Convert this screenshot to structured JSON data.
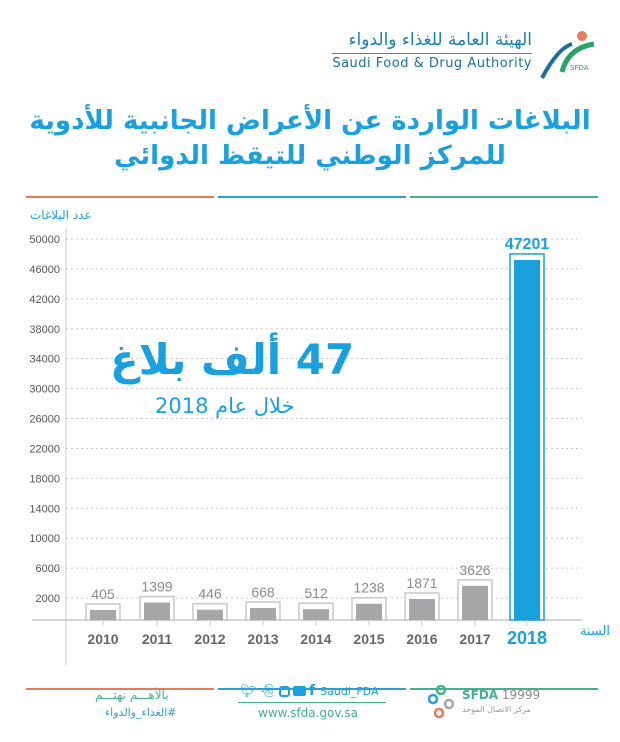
{
  "header": {
    "logo_ar": "الهيئة العامة للغذاء والدواء",
    "logo_en": "Saudi Food & Drug Authority",
    "logo_badge": "SFDA",
    "title_line1": "البلاغات الواردة عن الأعراض الجانبية للأدوية",
    "title_line2": "للمركز الوطني للتيقظ الدوائي"
  },
  "highlight": {
    "headline": "47 ألف بلاغ",
    "subline": "خلال عام 2018"
  },
  "colors": {
    "accent": "#1aa0dc",
    "bar": "#a7a7a9",
    "orange": "#e8795a",
    "blue": "#2aa0d6",
    "green": "#45b08c"
  },
  "chart_data": {
    "type": "bar",
    "title": "",
    "ylabel": "عدد البلاغات",
    "xlabel": "السنة",
    "categories": [
      "2010",
      "2011",
      "2012",
      "2013",
      "2014",
      "2015",
      "2016",
      "2017",
      "2018"
    ],
    "values": [
      405,
      1399,
      446,
      668,
      512,
      1238,
      1871,
      3626,
      47201
    ],
    "value_labels": [
      "405",
      "1399",
      "446",
      "668",
      "512",
      "1238",
      "1871",
      "3626",
      "47201"
    ],
    "yticks": [
      "2000",
      "6000",
      "10000",
      "14000",
      "18000",
      "22000",
      "26000",
      "30000",
      "34000",
      "38000",
      "42000",
      "46000",
      "50000"
    ],
    "ylim": [
      0,
      50000
    ],
    "grid": true,
    "highlighted_category": "2018"
  },
  "footer": {
    "slogan": "بالأهـــم نهتـــم",
    "hashtag": "#الغذاء_والدواء",
    "social_handle": "Saudi_FDA",
    "website": "www.sfda.gov.sa",
    "hotline_brand": "SFDA",
    "hotline_number": "19999",
    "hotline_caption": "مركز الاتصال الموحد",
    "social_icons": [
      "twitter-icon",
      "snapchat-icon",
      "instagram-icon",
      "youtube-icon",
      "facebook-icon"
    ]
  }
}
